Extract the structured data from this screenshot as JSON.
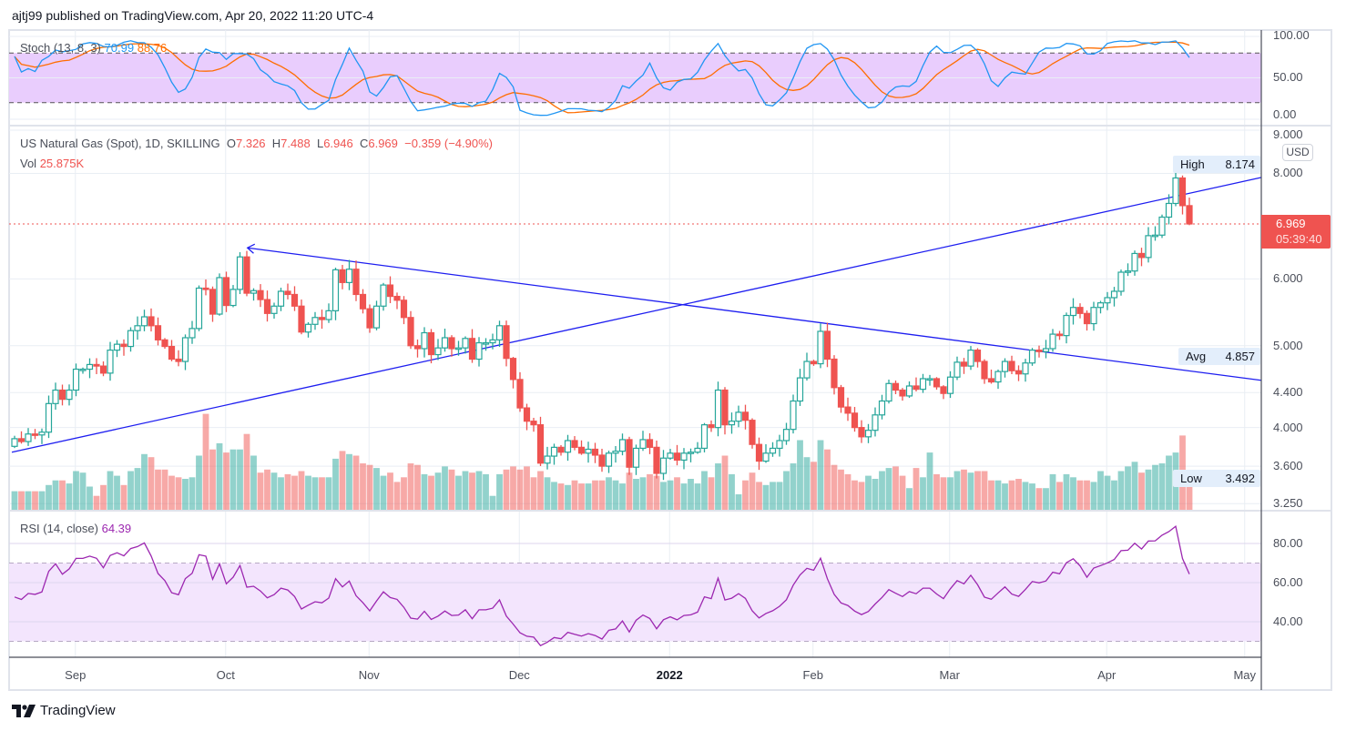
{
  "header": {
    "publish_line": "ajtj99 published on TradingView.com, Apr 20, 2022 11:20 UTC-4"
  },
  "stoch_legend": {
    "name": "Stoch (13, 8, 3)",
    "k_value": "70.99",
    "d_value": "88.76"
  },
  "main_legend": {
    "symbol": "US Natural Gas (Spot), 1D, SKILLING",
    "o_label": "O",
    "o_value": "7.326",
    "h_label": "H",
    "h_value": "7.488",
    "l_label": "L",
    "l_value": "6.946",
    "c_label": "C",
    "c_value": "6.969",
    "change": "−0.359 (−4.90%)",
    "vol_label": "Vol",
    "vol_value": "25.875K"
  },
  "rsi_legend": {
    "name": "RSI (14, close)",
    "value": "64.39"
  },
  "price_axis": {
    "currency": "USD",
    "high_label": "High",
    "high_value": "8.174",
    "avg_label": "Avg",
    "avg_value": "4.857",
    "low_label": "Low",
    "low_value": "3.492",
    "last_price": "6.969",
    "countdown": "05:39:40"
  },
  "footer": {
    "brand": "TradingView"
  },
  "colors": {
    "up": "#26a69a",
    "down": "#ef5350",
    "stoch_k": "#2196f3",
    "stoch_d": "#ff6d00",
    "rsi": "#9c27b0",
    "trendline": "#1e1ef0"
  },
  "chart_data": {
    "type": "candlestick",
    "title": "US Natural Gas (Spot), 1D, SKILLING",
    "scale": "log",
    "price_ticks": [
      "9.000",
      "8.000",
      "6.000",
      "5.000",
      "4.400",
      "4.000",
      "3.600",
      "3.250"
    ],
    "stoch_ticks": [
      "100.00",
      "50.00",
      "0.00"
    ],
    "stoch_bands": [
      20,
      80
    ],
    "rsi_ticks": [
      "80.00",
      "60.00",
      "40.00"
    ],
    "rsi_bands": [
      30,
      70
    ],
    "x_ticks": [
      {
        "label": "Sep",
        "bar": 8.9
      },
      {
        "label": "Oct",
        "bar": 30.9
      },
      {
        "label": "Nov",
        "bar": 51.9
      },
      {
        "label": "Dec",
        "bar": 73.9
      },
      {
        "label": "2022",
        "bar": 95.9,
        "bold": true
      },
      {
        "label": "Feb",
        "bar": 116.9
      },
      {
        "label": "Mar",
        "bar": 136.9
      },
      {
        "label": "Apr",
        "bar": 159.9
      },
      {
        "label": "May",
        "bar": 180.1
      }
    ],
    "close": [
      3.88,
      3.85,
      3.93,
      3.92,
      3.95,
      4.27,
      4.43,
      4.32,
      4.43,
      4.69,
      4.69,
      4.75,
      4.73,
      4.64,
      4.94,
      5.02,
      4.99,
      5.21,
      5.28,
      5.41,
      5.28,
      5.08,
      4.99,
      4.82,
      4.79,
      5.11,
      5.24,
      5.85,
      5.83,
      5.45,
      6.02,
      5.58,
      5.83,
      6.37,
      5.77,
      5.81,
      5.67,
      5.46,
      5.57,
      5.8,
      5.75,
      5.57,
      5.19,
      5.3,
      5.4,
      5.37,
      5.5,
      6.15,
      5.94,
      6.16,
      5.75,
      5.53,
      5.25,
      5.57,
      5.9,
      5.72,
      5.66,
      5.4,
      5.0,
      4.96,
      5.18,
      4.88,
      4.97,
      5.11,
      4.96,
      4.97,
      5.1,
      4.82,
      5.04,
      5.04,
      5.08,
      5.28,
      4.83,
      4.56,
      4.22,
      4.07,
      4.03,
      3.63,
      3.7,
      3.79,
      3.74,
      3.86,
      3.79,
      3.73,
      3.77,
      3.71,
      3.6,
      3.73,
      3.75,
      3.87,
      3.59,
      3.78,
      3.87,
      3.79,
      3.53,
      3.68,
      3.73,
      3.66,
      3.73,
      3.74,
      3.78,
      4.03,
      4.0,
      4.43,
      4.03,
      4.07,
      4.17,
      4.08,
      3.82,
      3.65,
      3.73,
      3.78,
      3.86,
      3.98,
      4.3,
      4.58,
      4.79,
      4.76,
      5.2,
      4.82,
      4.46,
      4.23,
      4.16,
      4.0,
      3.9,
      3.97,
      4.14,
      4.3,
      4.51,
      4.43,
      4.36,
      4.48,
      4.44,
      4.57,
      4.57,
      4.47,
      4.39,
      4.59,
      4.78,
      4.73,
      4.94,
      4.79,
      4.57,
      4.53,
      4.66,
      4.79,
      4.67,
      4.63,
      4.77,
      4.94,
      4.92,
      4.96,
      5.16,
      5.14,
      5.43,
      5.55,
      5.46,
      5.31,
      5.55,
      5.62,
      5.7,
      5.8,
      6.11,
      6.13,
      6.43,
      6.36,
      6.75,
      6.76,
      7.1,
      7.37,
      7.9,
      7.326,
      6.969
    ],
    "volume_k": [
      12,
      12,
      12,
      12,
      12,
      16,
      19,
      19,
      17,
      25,
      24,
      15,
      9,
      16,
      25,
      22,
      16,
      25,
      27,
      36,
      34,
      26,
      26,
      22,
      21,
      20,
      21,
      35,
      62,
      39,
      43,
      37,
      39,
      39,
      49,
      35,
      24,
      26,
      24,
      21,
      23,
      22,
      25,
      22,
      21,
      21,
      21,
      33,
      38,
      36,
      35,
      30,
      29,
      27,
      22,
      24,
      18,
      21,
      30,
      29,
      23,
      22,
      24,
      28,
      26,
      22,
      25,
      24,
      25,
      23,
      9,
      23,
      26,
      28,
      26,
      28,
      21,
      25,
      21,
      18,
      17,
      16,
      19,
      17,
      17,
      19,
      19,
      21,
      19,
      17,
      24,
      20,
      21,
      23,
      22,
      18,
      19,
      21,
      17,
      20,
      17,
      25,
      21,
      30,
      35,
      23,
      10,
      19,
      24,
      18,
      16,
      18,
      18,
      25,
      30,
      45,
      34,
      31,
      45,
      39,
      29,
      26,
      23,
      19,
      18,
      22,
      20,
      25,
      27,
      28,
      22,
      14,
      27,
      21,
      37,
      23,
      21,
      21,
      25,
      26,
      24,
      25,
      25,
      19,
      19,
      17,
      19,
      20,
      18,
      17,
      14,
      14,
      23,
      18,
      23,
      21,
      19,
      19,
      18,
      25,
      22,
      19,
      25,
      28,
      31,
      24,
      26,
      29,
      30,
      35,
      37,
      48,
      25.875
    ],
    "trendlines": [
      {
        "from": {
          "bar": -0.4,
          "price": 3.74
        },
        "to": {
          "bar": 182.5,
          "price": 7.91
        }
      },
      {
        "from": {
          "bar": 34.1,
          "price": 6.53
        },
        "to": {
          "bar": 182.5,
          "price": 4.55
        },
        "arrow_start": true
      }
    ],
    "last_price": 6.969
  }
}
